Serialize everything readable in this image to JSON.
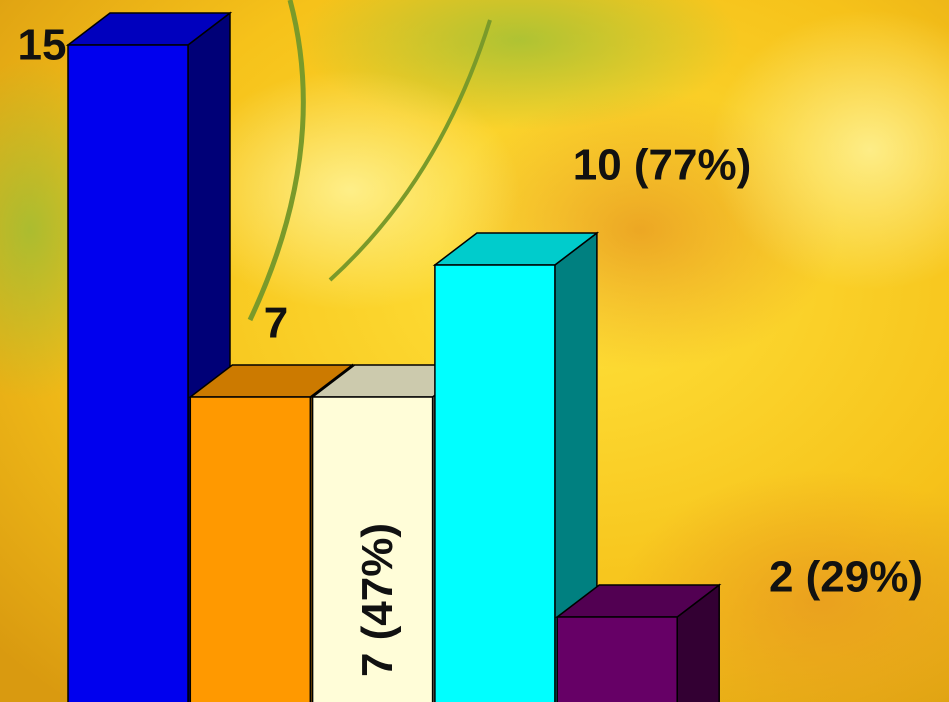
{
  "chart_data": {
    "type": "bar3d",
    "categories": [
      null,
      null,
      null,
      null,
      null
    ],
    "values": [
      15,
      7,
      7,
      10,
      2
    ],
    "value_labels": [
      "15",
      "7",
      "7 (47%)",
      "10 (77%)",
      "2 (29%)"
    ],
    "colors": [
      "#0000ee",
      "#ff9900",
      "#fffdd8",
      "#00ffff",
      "#660066"
    ]
  }
}
